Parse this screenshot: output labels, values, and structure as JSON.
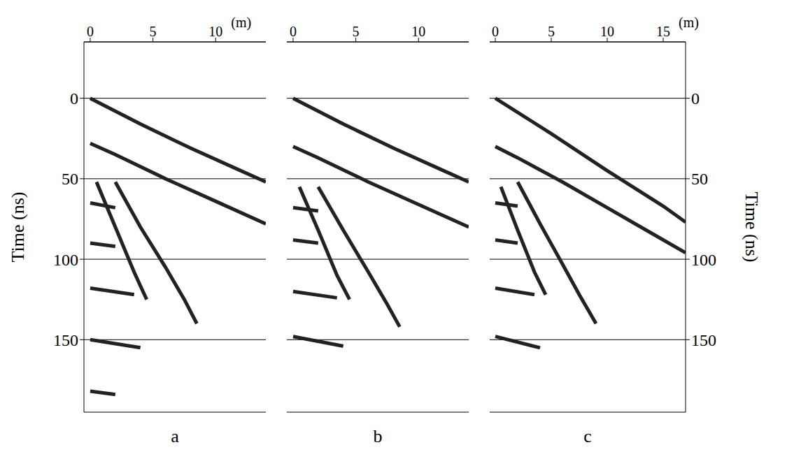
{
  "chart_data": [
    {
      "type": "line",
      "title": "a",
      "xlabel": "(m)",
      "ylabel": "Time (ns)",
      "grid": true,
      "xlim": [
        -0.5,
        14
      ],
      "xticks": [
        0,
        5,
        10
      ],
      "ylim": [
        -35,
        195
      ],
      "yticks": [
        0,
        50,
        100,
        150
      ],
      "series": [
        {
          "color": "#222222",
          "x": [
            0,
            4,
            8,
            12,
            14
          ],
          "values": [
            0,
            16,
            31,
            45,
            52
          ]
        },
        {
          "color": "#222222",
          "x": [
            0,
            2,
            6,
            10,
            14
          ],
          "values": [
            28,
            35,
            50,
            64,
            78
          ]
        },
        {
          "color": "#222222",
          "x": [
            0.5,
            2,
            3.5,
            4.5
          ],
          "values": [
            52,
            80,
            108,
            125
          ]
        },
        {
          "color": "#222222",
          "x": [
            2,
            4,
            6,
            7.5,
            8.5
          ],
          "values": [
            52,
            80,
            105,
            125,
            140
          ]
        },
        {
          "color": "#222222",
          "x": [
            0,
            2
          ],
          "values": [
            65,
            68
          ]
        },
        {
          "color": "#222222",
          "x": [
            0,
            2
          ],
          "values": [
            90,
            92
          ]
        },
        {
          "color": "#222222",
          "x": [
            0,
            3.5
          ],
          "values": [
            118,
            122
          ]
        },
        {
          "color": "#222222",
          "x": [
            0,
            4
          ],
          "values": [
            150,
            155
          ]
        },
        {
          "color": "#222222",
          "x": [
            0,
            2
          ],
          "values": [
            182,
            184
          ]
        }
      ]
    },
    {
      "type": "line",
      "title": "b",
      "grid": true,
      "tick_labels": "x",
      "xlim": [
        -0.5,
        14
      ],
      "xticks": [
        0,
        5,
        10
      ],
      "ylim": [
        -35,
        195
      ],
      "yticks": [
        0,
        50,
        100,
        150
      ],
      "series": [
        {
          "color": "#222222",
          "x": [
            0,
            4,
            8,
            12,
            14
          ],
          "values": [
            0,
            16,
            31,
            45,
            52
          ]
        },
        {
          "color": "#222222",
          "x": [
            0,
            2,
            6,
            10,
            14
          ],
          "values": [
            30,
            37,
            52,
            66,
            80
          ]
        },
        {
          "color": "#222222",
          "x": [
            0.5,
            2,
            3.5,
            4.5
          ],
          "values": [
            55,
            82,
            110,
            125
          ]
        },
        {
          "color": "#222222",
          "x": [
            2,
            4,
            6,
            7.5,
            8.5
          ],
          "values": [
            55,
            82,
            108,
            128,
            142
          ]
        },
        {
          "color": "#222222",
          "x": [
            0,
            2
          ],
          "values": [
            68,
            70
          ]
        },
        {
          "color": "#222222",
          "x": [
            0,
            2
          ],
          "values": [
            88,
            90
          ]
        },
        {
          "color": "#222222",
          "x": [
            0,
            3.5
          ],
          "values": [
            120,
            124
          ]
        },
        {
          "color": "#222222",
          "x": [
            0,
            4
          ],
          "values": [
            148,
            154
          ]
        }
      ]
    },
    {
      "type": "line",
      "title": "c",
      "xlabel": "(m)",
      "ylabel": "Time (ns)",
      "grid": true,
      "xlim": [
        -0.5,
        17
      ],
      "xticks": [
        0,
        5,
        10,
        15
      ],
      "ylim": [
        -35,
        195
      ],
      "yticks": [
        0,
        50,
        100,
        150
      ],
      "series": [
        {
          "color": "#222222",
          "x": [
            0,
            5,
            10,
            15,
            17
          ],
          "values": [
            0,
            22,
            45,
            67,
            77
          ]
        },
        {
          "color": "#222222",
          "x": [
            0,
            2,
            6,
            10,
            14,
            17
          ],
          "values": [
            30,
            37,
            52,
            68,
            84,
            96
          ]
        },
        {
          "color": "#222222",
          "x": [
            0.5,
            2,
            3.5,
            4.5
          ],
          "values": [
            55,
            82,
            108,
            122
          ]
        },
        {
          "color": "#222222",
          "x": [
            2,
            4,
            6,
            7.5,
            9
          ],
          "values": [
            52,
            78,
            103,
            122,
            140
          ]
        },
        {
          "color": "#222222",
          "x": [
            0,
            2
          ],
          "values": [
            65,
            67
          ]
        },
        {
          "color": "#222222",
          "x": [
            0,
            2
          ],
          "values": [
            88,
            90
          ]
        },
        {
          "color": "#222222",
          "x": [
            0,
            3.5
          ],
          "values": [
            118,
            122
          ]
        },
        {
          "color": "#222222",
          "x": [
            0,
            4
          ],
          "values": [
            148,
            155
          ]
        }
      ]
    }
  ]
}
